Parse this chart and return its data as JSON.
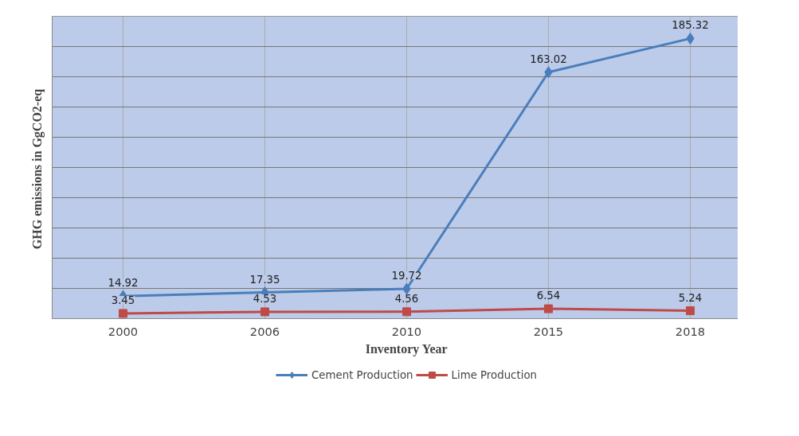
{
  "chart_data": {
    "type": "line",
    "xlabel": "Inventory Year",
    "ylabel": "GHG  emissions in GgCO2-eq",
    "categories": [
      "2000",
      "2006",
      "2010",
      "2015",
      "2018"
    ],
    "series": [
      {
        "name": "Cement Production",
        "color": "#4a7ebb",
        "marker": "diamond",
        "values": [
          14.92,
          17.35,
          19.72,
          163.02,
          185.32
        ]
      },
      {
        "name": "Lime Production",
        "color": "#be4b48",
        "marker": "square",
        "values": [
          3.45,
          4.53,
          4.56,
          6.54,
          5.24
        ]
      }
    ],
    "ylim": [
      0,
      200
    ],
    "yticks": [
      {
        "value": 0,
        "label": null
      },
      {
        "value": 20,
        "label": null
      },
      {
        "value": 40,
        "label": null
      },
      {
        "value": 60,
        "label": null
      },
      {
        "value": 80,
        "label": null
      },
      {
        "value": 100,
        "label": null
      },
      {
        "value": 120,
        "label": null
      },
      {
        "value": 140,
        "label": null
      },
      {
        "value": 160,
        "label": null
      },
      {
        "value": 180,
        "label": null
      },
      {
        "value": 200,
        "label": null
      }
    ],
    "tick_labels": "x",
    "grid": true,
    "legend": "bottom",
    "data_labels": true,
    "line_style": "solid"
  }
}
